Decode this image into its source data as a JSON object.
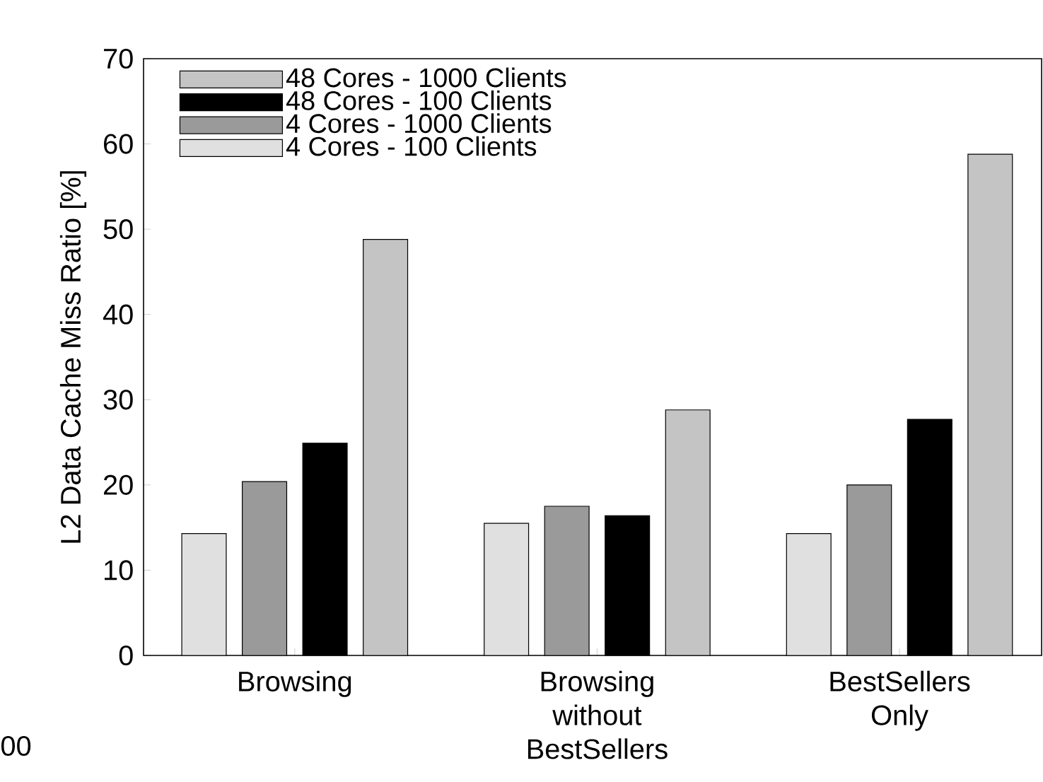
{
  "chart_data": {
    "type": "bar",
    "ylabel": "L2 Data Cache Miss Ratio [%]",
    "categories": [
      "Browsing",
      "Browsing without BestSellers",
      "BestSellers Only"
    ],
    "series": [
      {
        "name": "4 Cores - 100 Clients",
        "color": "#e0e0e0",
        "values": [
          14.3,
          15.5,
          14.3
        ]
      },
      {
        "name": "4 Cores - 1000 Clients",
        "color": "#9a9a9a",
        "values": [
          20.4,
          17.5,
          20.0
        ]
      },
      {
        "name": "48 Cores - 100 Clients",
        "color": "#000000",
        "values": [
          24.9,
          16.4,
          27.7
        ]
      },
      {
        "name": "48 Cores - 1000 Clients",
        "color": "#c4c4c4",
        "values": [
          48.8,
          28.8,
          58.8
        ]
      }
    ],
    "ylim": [
      0,
      70
    ],
    "yticks": [
      0,
      10,
      20,
      30,
      40,
      50,
      60,
      70
    ],
    "legend": "top left",
    "grid": false,
    "annotations": [
      "00"
    ]
  }
}
